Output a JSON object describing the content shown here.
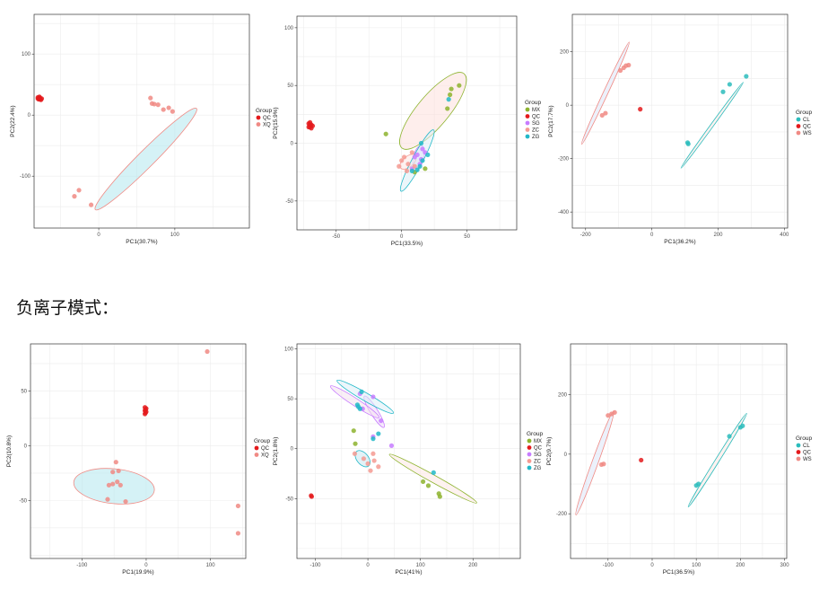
{
  "heading": "负离子模式：",
  "colors": {
    "QC": "#e41a1c",
    "XQ": "#f08a84",
    "WS": "#f08a84",
    "CL": "#2bbcbc",
    "MX": "#8db32e",
    "SG": "#c77cff",
    "ZC": "#f59a92",
    "ZG": "#22b8c8"
  },
  "chart_data": [
    {
      "type": "scatter",
      "xlabel": "PC1(30.7%)",
      "ylabel": "PC2(22.4%)",
      "xlim": [
        -85,
        198
      ],
      "ylim": [
        -185,
        165
      ],
      "xticks": [
        0,
        100
      ],
      "yticks": [
        -100,
        0,
        100
      ],
      "legend_title": "Group",
      "series": [
        {
          "name": "QC",
          "color": "#e41a1c",
          "points": [
            [
              -80,
              29
            ],
            [
              -79,
              27
            ],
            [
              -78,
              28
            ],
            [
              -77,
              26
            ],
            [
              -76,
              25
            ],
            [
              -79,
              26
            ],
            [
              -78,
              30
            ],
            [
              -77,
              28
            ],
            [
              -75,
              27
            ],
            [
              -80,
              27
            ]
          ]
        },
        {
          "name": "XQ",
          "color": "#f08a84",
          "points": [
            [
              -32,
              -133
            ],
            [
              -26,
              -123
            ],
            [
              -10,
              -147
            ],
            [
              68,
              28
            ],
            [
              70,
              19
            ],
            [
              73,
              18
            ],
            [
              78,
              17
            ],
            [
              85,
              9
            ],
            [
              92,
              12
            ],
            [
              97,
              6
            ]
          ]
        }
      ],
      "ellipses": [
        {
          "group": "XQ",
          "fill": "#b3e8ee",
          "stroke": "#f08a84",
          "cx": 62,
          "cy": -72,
          "rx": 188,
          "ry": 22,
          "angle": 45
        }
      ]
    },
    {
      "type": "scatter",
      "xlabel": "PC1(33.5%)",
      "ylabel": "PC2(15.9%)",
      "xlim": [
        -80,
        88
      ],
      "ylim": [
        -75,
        110
      ],
      "xticks": [
        -50,
        0,
        50
      ],
      "yticks": [
        -50,
        0,
        50,
        100
      ],
      "legend_title": "Group",
      "series": [
        {
          "name": "MX",
          "color": "#8db32e",
          "points": [
            [
              -12,
              8
            ],
            [
              35,
              30
            ],
            [
              37,
              42
            ],
            [
              38,
              47
            ],
            [
              44,
              50
            ],
            [
              18,
              -22
            ],
            [
              10,
              -25
            ]
          ]
        },
        {
          "name": "QC",
          "color": "#e41a1c",
          "points": [
            [
              -71,
              17
            ],
            [
              -70,
              14
            ],
            [
              -69,
              16
            ],
            [
              -70,
              18
            ],
            [
              -68,
              15
            ],
            [
              -71,
              14
            ],
            [
              -69,
              13
            ],
            [
              -70,
              16
            ]
          ]
        },
        {
          "name": "SG",
          "color": "#c77cff",
          "points": [
            [
              10,
              -12
            ],
            [
              14,
              -18
            ],
            [
              18,
              -8
            ],
            [
              8,
              -22
            ],
            [
              16,
              -5
            ],
            [
              12,
              -10
            ],
            [
              15,
              -14
            ]
          ]
        },
        {
          "name": "ZC",
          "color": "#f59a92",
          "points": [
            [
              2,
              -12
            ],
            [
              5,
              -18
            ],
            [
              -2,
              -20
            ],
            [
              8,
              -8
            ],
            [
              4,
              -24
            ],
            [
              0,
              -15
            ],
            [
              10,
              -20
            ]
          ]
        },
        {
          "name": "ZG",
          "color": "#22b8c8",
          "points": [
            [
              15,
              0
            ],
            [
              14,
              -20
            ],
            [
              12,
              -23
            ],
            [
              20,
              -10
            ],
            [
              36,
              38
            ],
            [
              16,
              -15
            ],
            [
              8,
              -24
            ]
          ]
        }
      ],
      "ellipses": [
        {
          "group": "MX",
          "fill": "#fde0dc",
          "stroke": "#8db32e",
          "cx": 24,
          "cy": 28,
          "rx": 74,
          "ry": 24,
          "angle": 50
        },
        {
          "group": "SG",
          "fill": "#e6d4fa",
          "stroke": "#c77cff",
          "cx": 13,
          "cy": -12,
          "rx": 18,
          "ry": 8,
          "angle": 75
        },
        {
          "group": "ZC",
          "fill": "#fde7e4",
          "stroke": "#f59a92",
          "cx": 5,
          "cy": -16,
          "rx": 15,
          "ry": 8,
          "angle": 40
        },
        {
          "group": "ZG",
          "fill": "#dceff6",
          "stroke": "#22b8c8",
          "cx": 12,
          "cy": -15,
          "rx": 53,
          "ry": 8,
          "angle": 62
        }
      ]
    },
    {
      "type": "scatter",
      "xlabel": "PC1(36.2%)",
      "ylabel": "PC2(17.7%)",
      "xlim": [
        -240,
        410
      ],
      "ylim": [
        -460,
        340
      ],
      "xticks": [
        -200,
        0,
        200,
        400
      ],
      "yticks": [
        -400,
        -200,
        0,
        200
      ],
      "legend_title": "Group",
      "series": [
        {
          "name": "CL",
          "color": "#2bbcbc",
          "points": [
            [
              110,
              -145
            ],
            [
              215,
              50
            ],
            [
              235,
              78
            ],
            [
              285,
              108
            ],
            [
              108,
              -140
            ]
          ]
        },
        {
          "name": "QC",
          "color": "#e41a1c",
          "points": [
            [
              -35,
              -15
            ]
          ]
        },
        {
          "name": "WS",
          "color": "#f08a84",
          "points": [
            [
              -150,
              -38
            ],
            [
              -140,
              -30
            ],
            [
              -95,
              130
            ],
            [
              -85,
              140
            ],
            [
              -78,
              148
            ],
            [
              -70,
              150
            ]
          ]
        }
      ],
      "ellipses": [
        {
          "group": "CL",
          "fill": "#fde7e4",
          "stroke": "#2bbcbc",
          "cx": 182,
          "cy": -75,
          "rx": 320,
          "ry": 9,
          "angle": 54
        },
        {
          "group": "WS",
          "fill": "#dde6f7",
          "stroke": "#f08a84",
          "cx": -140,
          "cy": 45,
          "rx": 340,
          "ry": 14,
          "angle": 65
        }
      ]
    },
    {
      "type": "scatter",
      "xlabel": "PC1(19.9%)",
      "ylabel": "PC2(10.8%)",
      "xlim": [
        -180,
        155
      ],
      "ylim": [
        -103,
        93
      ],
      "xticks": [
        -100,
        0,
        100
      ],
      "yticks": [
        -50,
        0,
        50
      ],
      "legend_title": "Group",
      "series": [
        {
          "name": "QC",
          "color": "#e41a1c",
          "points": [
            [
              -2,
              35
            ],
            [
              -1,
              33
            ],
            [
              0,
              31
            ],
            [
              -2,
              29
            ],
            [
              0,
              34
            ],
            [
              -1,
              30
            ],
            [
              -2,
              32
            ]
          ]
        },
        {
          "name": "XQ",
          "color": "#f08a84",
          "points": [
            [
              95,
              86
            ],
            [
              -47,
              -15
            ],
            [
              -52,
              -24
            ],
            [
              -43,
              -23
            ],
            [
              -45,
              -33
            ],
            [
              -40,
              -36
            ],
            [
              -58,
              -36
            ],
            [
              -52,
              -35
            ],
            [
              -60,
              -49
            ],
            [
              -32,
              -51
            ],
            [
              143,
              -55
            ],
            [
              143,
              -80
            ]
          ]
        }
      ],
      "ellipses": [
        {
          "group": "XQ",
          "fill": "#b3e8ee",
          "stroke": "#f08a84",
          "cx": -50,
          "cy": -37,
          "rx": 126,
          "ry": 54,
          "angle": -6
        }
      ]
    },
    {
      "type": "scatter",
      "xlabel": "PC1(41%)",
      "ylabel": "PC2(1.8%)",
      "xlim": [
        -135,
        290
      ],
      "ylim": [
        -110,
        105
      ],
      "xticks": [
        -100,
        0,
        100,
        200
      ],
      "yticks": [
        -50,
        0,
        50,
        100
      ],
      "legend_title": "Group",
      "series": [
        {
          "name": "MX",
          "color": "#8db32e",
          "points": [
            [
              -27,
              18
            ],
            [
              -24,
              5
            ],
            [
              105,
              -33
            ],
            [
              115,
              -37
            ],
            [
              135,
              -45
            ],
            [
              137,
              -48
            ]
          ]
        },
        {
          "name": "QC",
          "color": "#e41a1c",
          "points": [
            [
              -108,
              -47
            ],
            [
              -107,
              -48
            ]
          ]
        },
        {
          "name": "SG",
          "color": "#c77cff",
          "points": [
            [
              -15,
              55
            ],
            [
              10,
              52
            ],
            [
              25,
              28
            ],
            [
              45,
              3
            ],
            [
              10,
              12
            ],
            [
              -10,
              40
            ]
          ]
        },
        {
          "name": "ZC",
          "color": "#f59a92",
          "points": [
            [
              -25,
              -5
            ],
            [
              -8,
              -10
            ],
            [
              10,
              -5
            ],
            [
              0,
              -15
            ],
            [
              20,
              -18
            ],
            [
              5,
              -22
            ],
            [
              12,
              -12
            ]
          ]
        },
        {
          "name": "ZG",
          "color": "#22b8c8",
          "points": [
            [
              -20,
              44
            ],
            [
              -15,
              40
            ],
            [
              -12,
              57
            ],
            [
              10,
              10
            ],
            [
              20,
              15
            ],
            [
              125,
              -24
            ],
            [
              -18,
              42
            ]
          ]
        }
      ],
      "ellipses": [
        {
          "group": "MX",
          "fill": "#fde7e4",
          "stroke": "#8db32e",
          "cx": 124,
          "cy": -30,
          "rx": 190,
          "ry": 14,
          "angle": -29
        },
        {
          "group": "SG",
          "fill": "#efd8fa",
          "stroke": "#c77cff",
          "cx": 12,
          "cy": 37,
          "rx": 70,
          "ry": 14,
          "angle": -58
        },
        {
          "group": "ZC",
          "fill": "#f4e2ef",
          "stroke": "#c77cff",
          "cx": -25,
          "cy": 47,
          "rx": 110,
          "ry": 14,
          "angle": -33
        },
        {
          "group": "ZG",
          "fill": "#dceef8",
          "stroke": "#22b8c8",
          "cx": -5,
          "cy": 52,
          "rx": 124,
          "ry": 15,
          "angle": -30
        },
        {
          "group": "ZC2",
          "fill": "#cbe8f0",
          "stroke": "#22b8c8",
          "cx": -10,
          "cy": -10,
          "rx": 36,
          "ry": 22,
          "angle": -50
        }
      ]
    },
    {
      "type": "scatter",
      "xlabel": "PC1(36.5%)",
      "ylabel": "PC2(9.7%)",
      "xlim": [
        -185,
        305
      ],
      "ylim": [
        -350,
        370
      ],
      "xticks": [
        -100,
        0,
        100,
        200,
        300
      ],
      "yticks": [
        -200,
        0,
        200
      ],
      "legend_title": "Group",
      "series": [
        {
          "name": "CL",
          "color": "#2bbcbc",
          "points": [
            [
              100,
              -105
            ],
            [
              105,
              -100
            ],
            [
              175,
              60
            ],
            [
              200,
              90
            ],
            [
              205,
              95
            ]
          ]
        },
        {
          "name": "QC",
          "color": "#e41a1c",
          "points": [
            [
              -25,
              -20
            ]
          ]
        },
        {
          "name": "WS",
          "color": "#f08a84",
          "points": [
            [
              -115,
              -35
            ],
            [
              -110,
              -33
            ],
            [
              -100,
              130
            ],
            [
              -92,
              135
            ],
            [
              -85,
              140
            ]
          ]
        }
      ],
      "ellipses": [
        {
          "group": "CL",
          "fill": "#fde7e4",
          "stroke": "#2bbcbc",
          "cx": 148,
          "cy": -20,
          "rx": 250,
          "ry": 9,
          "angle": 58
        },
        {
          "group": "WS",
          "fill": "#dde6f7",
          "stroke": "#f08a84",
          "cx": -130,
          "cy": -30,
          "rx": 250,
          "ry": 14,
          "angle": 70
        }
      ]
    }
  ]
}
